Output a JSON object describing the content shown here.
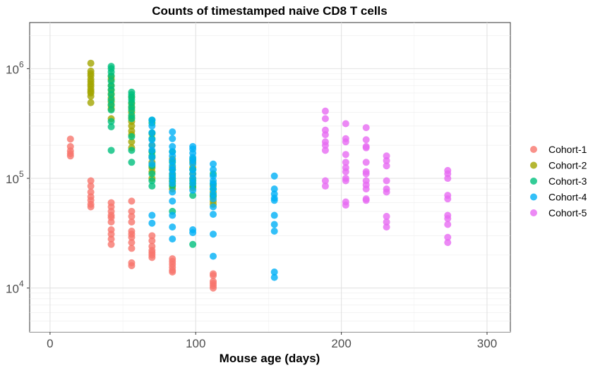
{
  "chart_data": {
    "type": "scatter",
    "title": "Counts of timestamped naive CD8 T cells",
    "xlabel": "Mouse age (days)",
    "ylabel": "",
    "xlim": [
      -14,
      316
    ],
    "ylim_log10": [
      3.6,
      6.42
    ],
    "y_scale": "log10",
    "x_ticks": [
      0,
      100,
      200,
      300
    ],
    "x_tick_labels": [
      "0",
      "100",
      "200",
      "300"
    ],
    "y_ticks": [
      10000,
      100000,
      1000000
    ],
    "y_tick_labels": [
      {
        "base": "10",
        "exp": "4"
      },
      {
        "base": "10",
        "exp": "5"
      },
      {
        "base": "10",
        "exp": "6"
      }
    ],
    "grid": true,
    "legend_position": "right",
    "colors": {
      "Cohort-1": "#F8766D",
      "Cohort-2": "#A3A500",
      "Cohort-3": "#00BF7D",
      "Cohort-4": "#00B0F6",
      "Cohort-5": "#E76BF3"
    },
    "series": [
      {
        "name": "Cohort-1",
        "color": "#F8766D",
        "points": [
          [
            14,
            228000
          ],
          [
            14,
            195000
          ],
          [
            14,
            178000
          ],
          [
            14,
            168000
          ],
          [
            14,
            160000
          ],
          [
            28,
            95000
          ],
          [
            28,
            85000
          ],
          [
            28,
            75000
          ],
          [
            28,
            68000
          ],
          [
            28,
            63000
          ],
          [
            28,
            58000
          ],
          [
            28,
            55000
          ],
          [
            42,
            60000
          ],
          [
            42,
            55000
          ],
          [
            42,
            50000
          ],
          [
            42,
            46000
          ],
          [
            42,
            44000
          ],
          [
            42,
            40000
          ],
          [
            42,
            34000
          ],
          [
            42,
            31000
          ],
          [
            42,
            28000
          ],
          [
            42,
            25000
          ],
          [
            56,
            62000
          ],
          [
            56,
            50000
          ],
          [
            56,
            45000
          ],
          [
            56,
            40000
          ],
          [
            56,
            33000
          ],
          [
            56,
            31000
          ],
          [
            56,
            29000
          ],
          [
            56,
            26000
          ],
          [
            56,
            23000
          ],
          [
            56,
            17000
          ],
          [
            56,
            16000
          ],
          [
            70,
            30000
          ],
          [
            70,
            27000
          ],
          [
            70,
            24000
          ],
          [
            70,
            22000
          ],
          [
            70,
            21000
          ],
          [
            70,
            20000
          ],
          [
            70,
            19000
          ],
          [
            84,
            18500
          ],
          [
            84,
            17500
          ],
          [
            84,
            16500
          ],
          [
            84,
            15500
          ],
          [
            84,
            14500
          ],
          [
            84,
            14000
          ],
          [
            112,
            13500
          ],
          [
            112,
            13000
          ],
          [
            112,
            11500
          ],
          [
            112,
            11000
          ],
          [
            112,
            10500
          ],
          [
            112,
            10000
          ]
        ]
      },
      {
        "name": "Cohort-2",
        "color": "#A3A500",
        "points": [
          [
            28,
            1120000
          ],
          [
            28,
            950000
          ],
          [
            28,
            900000
          ],
          [
            28,
            860000
          ],
          [
            28,
            800000
          ],
          [
            28,
            760000
          ],
          [
            28,
            720000
          ],
          [
            28,
            690000
          ],
          [
            28,
            650000
          ],
          [
            28,
            620000
          ],
          [
            28,
            600000
          ],
          [
            28,
            560000
          ],
          [
            28,
            490000
          ],
          [
            42,
            850000
          ],
          [
            42,
            800000
          ],
          [
            42,
            700000
          ],
          [
            42,
            640000
          ],
          [
            42,
            590000
          ],
          [
            42,
            540000
          ],
          [
            42,
            500000
          ],
          [
            42,
            460000
          ],
          [
            42,
            430000
          ],
          [
            42,
            350000
          ],
          [
            56,
            550000
          ],
          [
            56,
            480000
          ],
          [
            56,
            440000
          ],
          [
            56,
            400000
          ],
          [
            56,
            360000
          ],
          [
            56,
            330000
          ],
          [
            56,
            300000
          ],
          [
            56,
            270000
          ],
          [
            56,
            250000
          ],
          [
            56,
            215000
          ],
          [
            56,
            190000
          ],
          [
            70,
            255000
          ],
          [
            70,
            200000
          ],
          [
            70,
            175000
          ],
          [
            70,
            155000
          ],
          [
            70,
            140000
          ],
          [
            70,
            125000
          ],
          [
            70,
            115000
          ],
          [
            70,
            100000
          ],
          [
            84,
            150000
          ],
          [
            84,
            125000
          ],
          [
            84,
            110000
          ],
          [
            84,
            100000
          ],
          [
            84,
            93000
          ],
          [
            84,
            87000
          ],
          [
            84,
            80000
          ],
          [
            98,
            140000
          ],
          [
            98,
            125000
          ],
          [
            98,
            110000
          ],
          [
            98,
            100000
          ],
          [
            98,
            90000
          ],
          [
            98,
            82000
          ],
          [
            112,
            85000
          ],
          [
            112,
            75000
          ],
          [
            112,
            68000
          ],
          [
            112,
            62000
          ],
          [
            112,
            58000
          ]
        ]
      },
      {
        "name": "Cohort-3",
        "color": "#00BF7D",
        "points": [
          [
            42,
            1050000
          ],
          [
            42,
            1000000
          ],
          [
            42,
            930000
          ],
          [
            42,
            860000
          ],
          [
            42,
            770000
          ],
          [
            42,
            700000
          ],
          [
            42,
            640000
          ],
          [
            42,
            580000
          ],
          [
            42,
            520000
          ],
          [
            42,
            470000
          ],
          [
            42,
            420000
          ],
          [
            42,
            330000
          ],
          [
            42,
            295000
          ],
          [
            42,
            180000
          ],
          [
            56,
            610000
          ],
          [
            56,
            580000
          ],
          [
            56,
            550000
          ],
          [
            56,
            520000
          ],
          [
            56,
            490000
          ],
          [
            56,
            450000
          ],
          [
            56,
            420000
          ],
          [
            56,
            375000
          ],
          [
            56,
            350000
          ],
          [
            56,
            240000
          ],
          [
            56,
            180000
          ],
          [
            56,
            140000
          ],
          [
            70,
            340000
          ],
          [
            70,
            320000
          ],
          [
            70,
            260000
          ],
          [
            70,
            230000
          ],
          [
            70,
            175000
          ],
          [
            70,
            160000
          ],
          [
            70,
            130000
          ],
          [
            70,
            110000
          ],
          [
            70,
            95000
          ],
          [
            70,
            85000
          ],
          [
            84,
            175000
          ],
          [
            84,
            140000
          ],
          [
            84,
            120000
          ],
          [
            84,
            105000
          ],
          [
            84,
            95000
          ],
          [
            84,
            85000
          ],
          [
            84,
            50000
          ],
          [
            98,
            150000
          ],
          [
            98,
            120000
          ],
          [
            98,
            95000
          ],
          [
            98,
            85000
          ],
          [
            98,
            70000
          ],
          [
            98,
            25000
          ],
          [
            112,
            110000
          ],
          [
            112,
            90000
          ],
          [
            112,
            80000
          ],
          [
            112,
            70000
          ]
        ]
      },
      {
        "name": "Cohort-4",
        "color": "#00B0F6",
        "points": [
          [
            70,
            340000
          ],
          [
            70,
            300000
          ],
          [
            70,
            260000
          ],
          [
            70,
            225000
          ],
          [
            70,
            200000
          ],
          [
            70,
            180000
          ],
          [
            70,
            155000
          ],
          [
            70,
            135000
          ],
          [
            70,
            46000
          ],
          [
            70,
            39000
          ],
          [
            84,
            265000
          ],
          [
            84,
            230000
          ],
          [
            84,
            195000
          ],
          [
            84,
            175000
          ],
          [
            84,
            160000
          ],
          [
            84,
            145000
          ],
          [
            84,
            130000
          ],
          [
            84,
            120000
          ],
          [
            84,
            110000
          ],
          [
            84,
            100000
          ],
          [
            84,
            90000
          ],
          [
            84,
            75000
          ],
          [
            84,
            62000
          ],
          [
            84,
            46000
          ],
          [
            84,
            36000
          ],
          [
            84,
            28000
          ],
          [
            98,
            195000
          ],
          [
            98,
            185000
          ],
          [
            98,
            170000
          ],
          [
            98,
            155000
          ],
          [
            98,
            145000
          ],
          [
            98,
            135000
          ],
          [
            98,
            120000
          ],
          [
            98,
            110000
          ],
          [
            98,
            100000
          ],
          [
            98,
            90000
          ],
          [
            98,
            78000
          ],
          [
            98,
            34000
          ],
          [
            98,
            32000
          ],
          [
            112,
            135000
          ],
          [
            112,
            120000
          ],
          [
            112,
            105000
          ],
          [
            112,
            95000
          ],
          [
            112,
            88000
          ],
          [
            112,
            80000
          ],
          [
            112,
            72000
          ],
          [
            112,
            65000
          ],
          [
            112,
            55000
          ],
          [
            112,
            47000
          ],
          [
            112,
            31000
          ],
          [
            112,
            19500
          ],
          [
            154,
            105000
          ],
          [
            154,
            80000
          ],
          [
            154,
            72000
          ],
          [
            154,
            66000
          ],
          [
            154,
            63000
          ],
          [
            154,
            46000
          ],
          [
            154,
            38000
          ],
          [
            154,
            33000
          ],
          [
            154,
            14000
          ],
          [
            154,
            12500
          ]
        ]
      },
      {
        "name": "Cohort-5",
        "color": "#E76BF3",
        "points": [
          [
            189,
            410000
          ],
          [
            189,
            350000
          ],
          [
            189,
            275000
          ],
          [
            189,
            250000
          ],
          [
            189,
            215000
          ],
          [
            189,
            200000
          ],
          [
            189,
            180000
          ],
          [
            189,
            95000
          ],
          [
            189,
            85000
          ],
          [
            203,
            315000
          ],
          [
            203,
            230000
          ],
          [
            203,
            215000
          ],
          [
            203,
            165000
          ],
          [
            203,
            140000
          ],
          [
            203,
            125000
          ],
          [
            203,
            115000
          ],
          [
            203,
            100000
          ],
          [
            203,
            95000
          ],
          [
            203,
            61000
          ],
          [
            203,
            57000
          ],
          [
            217,
            290000
          ],
          [
            217,
            225000
          ],
          [
            217,
            195000
          ],
          [
            217,
            190000
          ],
          [
            217,
            140000
          ],
          [
            217,
            115000
          ],
          [
            217,
            110000
          ],
          [
            217,
            95000
          ],
          [
            217,
            87000
          ],
          [
            217,
            80000
          ],
          [
            217,
            65000
          ],
          [
            217,
            63000
          ],
          [
            231,
            160000
          ],
          [
            231,
            145000
          ],
          [
            231,
            130000
          ],
          [
            231,
            95000
          ],
          [
            231,
            80000
          ],
          [
            231,
            75000
          ],
          [
            231,
            45000
          ],
          [
            231,
            40000
          ],
          [
            231,
            36000
          ],
          [
            273,
            118000
          ],
          [
            273,
            110000
          ],
          [
            273,
            100000
          ],
          [
            273,
            70000
          ],
          [
            273,
            65000
          ],
          [
            273,
            46000
          ],
          [
            273,
            43000
          ],
          [
            273,
            38000
          ],
          [
            273,
            29000
          ],
          [
            273,
            26000
          ]
        ]
      }
    ]
  }
}
